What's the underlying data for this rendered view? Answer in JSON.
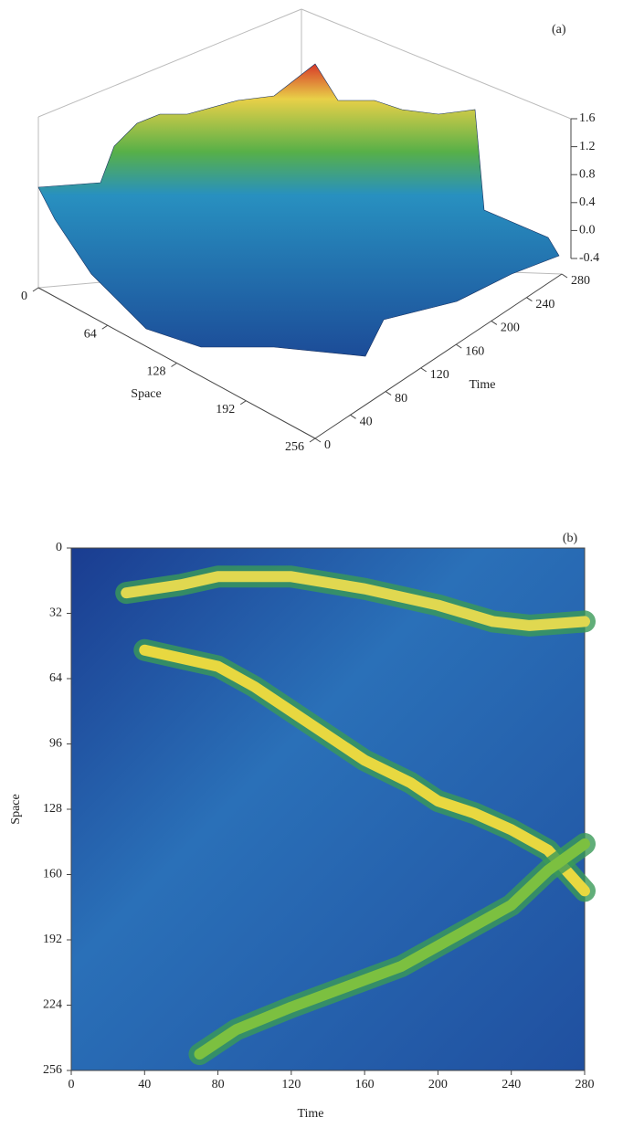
{
  "chart_data": [
    {
      "type": "surface",
      "label": "(a)",
      "xlabel": "Space",
      "ylabel": "Time",
      "xlim": [
        0,
        256
      ],
      "xticks": [
        0,
        64,
        128,
        192,
        256
      ],
      "ylim": [
        0,
        280
      ],
      "yticks": [
        0,
        40,
        80,
        120,
        160,
        200,
        240,
        280
      ],
      "zlim": [
        -0.4,
        1.6
      ],
      "zticks": [
        -0.4,
        {
          "value": 0,
          "label": "0.0"
        },
        0.4,
        0.8,
        1.2,
        1.6
      ]
    },
    {
      "type": "heatmap",
      "label": "(b)",
      "xlabel": "Time",
      "ylabel": "Space",
      "xlim": [
        0,
        280
      ],
      "xticks": [
        0,
        40,
        80,
        120,
        160,
        200,
        240,
        280
      ],
      "ylim": [
        0,
        256
      ],
      "yticks": [
        0,
        32,
        64,
        96,
        128,
        160,
        192,
        224,
        256
      ],
      "tracks": [
        {
          "color": "#e8d840",
          "x": [
            40,
            60,
            80,
            100,
            120,
            140,
            160,
            185,
            200,
            220,
            240,
            260,
            280
          ],
          "y": [
            50,
            54,
            58,
            68,
            80,
            92,
            104,
            115,
            124,
            130,
            138,
            148,
            168
          ]
        },
        {
          "color": "#e0d850",
          "x": [
            30,
            60,
            80,
            120,
            160,
            200,
            230,
            250,
            280
          ],
          "y": [
            22,
            18,
            14,
            14,
            20,
            28,
            36,
            38,
            36
          ]
        },
        {
          "color": "#7cc040",
          "x": [
            70,
            90,
            120,
            150,
            180,
            210,
            240,
            260,
            280
          ],
          "y": [
            248,
            236,
            225,
            215,
            205,
            190,
            175,
            158,
            145
          ]
        }
      ]
    }
  ]
}
